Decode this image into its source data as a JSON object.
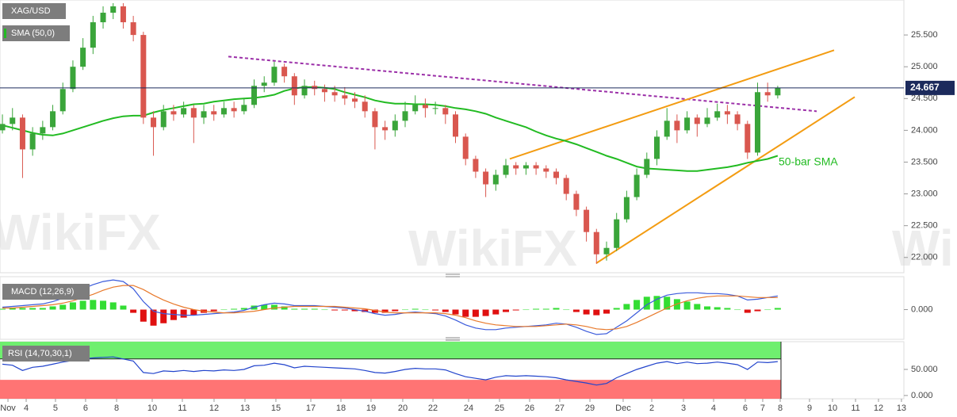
{
  "watermark": "WikiFX",
  "chart_data": [
    {
      "type": "candlestick",
      "title": "XAG/USD",
      "annotation": "50-bar SMA",
      "last_price": 24.667,
      "up_color": "#3aa53a",
      "down_color": "#d9574f",
      "x": [
        0,
        1,
        2,
        3,
        4,
        5,
        6,
        7,
        8,
        9,
        10,
        11,
        12,
        13,
        14,
        15,
        16,
        17,
        18,
        19,
        20,
        21,
        22,
        23,
        24,
        25,
        26,
        27,
        28,
        29,
        30,
        31,
        32,
        33,
        34,
        35,
        36,
        37,
        38,
        39,
        40,
        41,
        42,
        43,
        44,
        45,
        46,
        47,
        48,
        49,
        50,
        51,
        52,
        53,
        54,
        55,
        56,
        57,
        58,
        59,
        60,
        61,
        62,
        63,
        64,
        65,
        66,
        67,
        68,
        69,
        70,
        71,
        72,
        73,
        74,
        75,
        76,
        77
      ],
      "open": [
        24.0,
        24.1,
        24.2,
        23.7,
        23.95,
        24.05,
        24.3,
        24.65,
        25.0,
        25.3,
        25.7,
        25.85,
        25.95,
        25.7,
        25.5,
        24.2,
        24.05,
        24.3,
        24.25,
        24.35,
        24.2,
        24.3,
        24.25,
        24.35,
        24.3,
        24.4,
        24.7,
        24.75,
        25.0,
        24.85,
        24.55,
        24.7,
        24.65,
        24.6,
        24.55,
        24.5,
        24.45,
        24.3,
        24.05,
        24.0,
        24.15,
        24.3,
        24.4,
        24.35,
        24.35,
        24.25,
        23.9,
        23.55,
        23.35,
        23.15,
        23.3,
        23.45,
        23.4,
        23.45,
        23.4,
        23.35,
        23.25,
        23.0,
        22.75,
        22.4,
        22.05,
        22.15,
        22.6,
        22.95,
        23.3,
        23.55,
        23.9,
        24.15,
        24.0,
        24.2,
        24.1,
        24.2,
        24.3,
        24.25,
        24.1,
        23.65,
        24.6,
        24.55
      ],
      "high": [
        24.25,
        24.35,
        24.25,
        24.05,
        24.15,
        24.4,
        24.75,
        25.1,
        25.45,
        25.8,
        25.95,
        26.0,
        26.0,
        25.8,
        25.55,
        24.3,
        24.4,
        24.4,
        24.45,
        24.4,
        24.4,
        24.4,
        24.45,
        24.45,
        24.5,
        24.8,
        24.85,
        25.08,
        25.05,
        24.9,
        24.8,
        24.78,
        24.72,
        24.7,
        24.68,
        24.6,
        24.55,
        24.35,
        24.15,
        24.25,
        24.45,
        24.55,
        24.5,
        24.45,
        24.4,
        24.3,
        23.95,
        23.6,
        23.4,
        23.38,
        23.55,
        23.5,
        23.5,
        23.5,
        23.45,
        23.4,
        23.3,
        23.05,
        22.8,
        22.45,
        22.25,
        22.7,
        23.05,
        23.4,
        23.65,
        24.0,
        24.35,
        24.25,
        24.3,
        24.25,
        24.35,
        24.42,
        24.4,
        24.3,
        24.15,
        24.75,
        24.75,
        24.7
      ],
      "low": [
        23.95,
        24.0,
        23.25,
        23.6,
        23.85,
        24.0,
        24.25,
        24.6,
        24.95,
        25.2,
        25.6,
        25.75,
        25.6,
        25.4,
        24.1,
        23.6,
        24.0,
        24.15,
        24.2,
        23.8,
        24.1,
        24.15,
        24.2,
        24.2,
        24.25,
        24.35,
        24.6,
        24.7,
        24.75,
        24.4,
        24.5,
        24.55,
        24.45,
        24.45,
        24.4,
        24.35,
        24.2,
        23.7,
        23.85,
        23.9,
        24.05,
        24.25,
        24.2,
        24.25,
        24.1,
        23.8,
        23.45,
        23.25,
        22.95,
        23.05,
        23.25,
        23.3,
        23.3,
        23.3,
        23.25,
        23.15,
        22.9,
        22.65,
        22.25,
        21.9,
        21.95,
        22.1,
        22.55,
        22.9,
        23.25,
        23.45,
        23.85,
        23.8,
        23.95,
        23.9,
        24.05,
        24.15,
        24.1,
        24.0,
        23.55,
        23.6,
        24.45,
        24.5
      ],
      "close": [
        24.1,
        24.2,
        23.7,
        23.95,
        24.05,
        24.3,
        24.65,
        25.0,
        25.3,
        25.7,
        25.85,
        25.95,
        25.7,
        25.5,
        24.2,
        24.05,
        24.3,
        24.25,
        24.35,
        24.2,
        24.3,
        24.25,
        24.35,
        24.3,
        24.4,
        24.7,
        24.75,
        25.0,
        24.85,
        24.55,
        24.7,
        24.65,
        24.6,
        24.55,
        24.5,
        24.45,
        24.3,
        24.05,
        24.0,
        24.15,
        24.3,
        24.4,
        24.35,
        24.35,
        24.25,
        23.9,
        23.55,
        23.35,
        23.15,
        23.3,
        23.45,
        23.4,
        23.45,
        23.4,
        23.35,
        23.25,
        23.0,
        22.75,
        22.4,
        22.05,
        22.15,
        22.6,
        22.95,
        23.3,
        23.55,
        23.9,
        24.15,
        24.0,
        24.2,
        24.1,
        24.2,
        24.3,
        24.25,
        24.1,
        23.65,
        24.6,
        24.55,
        24.667
      ],
      "series": [
        {
          "name": "SMA (50,0)",
          "color": "#22bb22",
          "values": [
            24.08,
            24.04,
            24.0,
            23.96,
            23.93,
            23.92,
            23.95,
            24.0,
            24.05,
            24.1,
            24.15,
            24.19,
            24.22,
            24.23,
            24.23,
            24.28,
            24.32,
            24.35,
            24.38,
            24.41,
            24.42,
            24.45,
            24.47,
            24.49,
            24.5,
            24.51,
            24.53,
            24.56,
            24.62,
            24.66,
            24.68,
            24.68,
            24.67,
            24.65,
            24.6,
            24.56,
            24.52,
            24.47,
            24.44,
            24.42,
            24.42,
            24.41,
            24.41,
            24.4,
            24.38,
            24.35,
            24.33,
            24.3,
            24.26,
            24.2,
            24.15,
            24.1,
            24.05,
            23.98,
            23.92,
            23.87,
            23.83,
            23.78,
            23.72,
            23.66,
            23.6,
            23.55,
            23.49,
            23.43,
            23.4,
            23.39,
            23.38,
            23.37,
            23.36,
            23.36,
            23.38,
            23.4,
            23.42,
            23.45,
            23.49,
            23.52,
            23.55,
            23.6
          ]
        }
      ],
      "trend_lines": [
        {
          "x": [
            22.44,
            80.87
          ],
          "y": [
            25.16,
            24.3
          ],
          "color": "#9b2fa8",
          "dashed": true
        },
        {
          "x": [
            50.39,
            82.6
          ],
          "y": [
            23.55,
            25.26
          ],
          "color": "#f39c12",
          "dashed": false
        },
        {
          "x": [
            58.98,
            84.65
          ],
          "y": [
            21.91,
            24.525
          ],
          "color": "#f39c12",
          "dashed": false
        }
      ],
      "xlim": [
        -0.24,
        89.53
      ],
      "ylim": [
        21.76,
        26.05
      ],
      "yticks": [
        {
          "value": 22,
          "label": "22.000"
        },
        {
          "value": 22.5,
          "label": "22.500"
        },
        {
          "value": 23,
          "label": "23.000"
        },
        {
          "value": 23.5,
          "label": "23.500"
        },
        {
          "value": 24,
          "label": "24.000"
        },
        {
          "value": 24.5,
          "label": "24.500"
        },
        {
          "value": 25,
          "label": "25.000"
        },
        {
          "value": 25.5,
          "label": "25.500"
        }
      ]
    },
    {
      "type": "macd",
      "title": "MACD (12,26,9)",
      "ylim": [
        -0.37,
        0.41
      ],
      "yticks": [
        {
          "value": 0,
          "label": "0.000"
        }
      ],
      "series": [
        {
          "color": "#3b5bdb",
          "values": [
            0.03,
            0.04,
            0.05,
            0.06,
            0.07,
            0.1,
            0.14,
            0.2,
            0.26,
            0.31,
            0.35,
            0.37,
            0.35,
            0.26,
            0.1,
            -0.02,
            -0.05,
            -0.06,
            -0.07,
            -0.07,
            -0.06,
            -0.05,
            -0.04,
            -0.03,
            -0.01,
            0.03,
            0.06,
            0.08,
            0.07,
            0.05,
            0.05,
            0.05,
            0.04,
            0.03,
            0.02,
            0.0,
            -0.02,
            -0.05,
            -0.07,
            -0.06,
            -0.04,
            -0.03,
            -0.04,
            -0.05,
            -0.08,
            -0.13,
            -0.19,
            -0.23,
            -0.25,
            -0.25,
            -0.23,
            -0.22,
            -0.21,
            -0.2,
            -0.19,
            -0.17,
            -0.18,
            -0.22,
            -0.27,
            -0.31,
            -0.3,
            -0.22,
            -0.14,
            -0.04,
            0.06,
            0.13,
            0.18,
            0.2,
            0.21,
            0.21,
            0.2,
            0.2,
            0.19,
            0.17,
            0.12,
            0.13,
            0.15,
            0.17
          ]
        },
        {
          "color": "#e8792b",
          "values": [
            0.02,
            0.02,
            0.03,
            0.04,
            0.05,
            0.06,
            0.08,
            0.11,
            0.15,
            0.19,
            0.24,
            0.28,
            0.3,
            0.3,
            0.25,
            0.18,
            0.12,
            0.07,
            0.03,
            0.0,
            -0.02,
            -0.03,
            -0.04,
            -0.04,
            -0.03,
            -0.02,
            0.0,
            0.02,
            0.03,
            0.04,
            0.04,
            0.04,
            0.04,
            0.04,
            0.03,
            0.02,
            0.01,
            -0.01,
            -0.03,
            -0.04,
            -0.04,
            -0.04,
            -0.04,
            -0.04,
            -0.05,
            -0.07,
            -0.1,
            -0.14,
            -0.17,
            -0.19,
            -0.2,
            -0.21,
            -0.21,
            -0.21,
            -0.2,
            -0.19,
            -0.18,
            -0.19,
            -0.21,
            -0.24,
            -0.25,
            -0.24,
            -0.21,
            -0.16,
            -0.1,
            -0.04,
            0.02,
            0.07,
            0.11,
            0.14,
            0.16,
            0.17,
            0.17,
            0.17,
            0.16,
            0.15,
            0.15,
            0.15
          ]
        }
      ],
      "histogram": {
        "up_color": "#33dd33",
        "down_color": "#e01010",
        "values": [
          0.01,
          0.02,
          0.02,
          0.02,
          0.02,
          0.04,
          0.06,
          0.09,
          0.11,
          0.12,
          0.11,
          0.09,
          0.05,
          -0.04,
          -0.15,
          -0.2,
          -0.17,
          -0.13,
          -0.1,
          -0.07,
          -0.04,
          -0.02,
          0,
          0.01,
          0.02,
          0.05,
          0.06,
          0.06,
          0.04,
          0.01,
          0.01,
          0.01,
          0,
          -0.01,
          -0.01,
          -0.02,
          -0.03,
          -0.04,
          -0.04,
          -0.02,
          0,
          0.01,
          0,
          -0.01,
          -0.03,
          -0.06,
          -0.09,
          -0.09,
          -0.08,
          -0.06,
          -0.03,
          -0.01,
          0,
          0.01,
          0.01,
          0.02,
          0,
          -0.03,
          -0.06,
          -0.07,
          -0.05,
          0.02,
          0.07,
          0.12,
          0.16,
          0.17,
          0.16,
          0.13,
          0.1,
          0.07,
          0.04,
          0.03,
          0.02,
          0,
          -0.04,
          -0.02,
          0,
          0.02
        ]
      }
    },
    {
      "type": "rsi",
      "title": "RSI (14,70,30,1)",
      "color": "#2244cc",
      "overbought": 70,
      "oversold": 30,
      "overbought_color": "#6fef6f",
      "oversold_color": "#ff7474",
      "ylim": [
        -6.25,
        103.1
      ],
      "yticks": [
        {
          "value": 50,
          "label": "50.000"
        },
        {
          "value": 0,
          "label": "0.000"
        }
      ],
      "values": [
        60,
        58,
        48,
        54,
        56,
        60,
        64,
        67,
        70,
        72,
        73,
        74,
        70,
        66,
        44,
        42,
        47,
        46,
        48,
        46,
        48,
        47,
        49,
        48,
        50,
        57,
        58,
        62,
        59,
        53,
        56,
        55,
        54,
        53,
        52,
        51,
        48,
        44,
        43,
        46,
        50,
        52,
        51,
        51,
        49,
        42,
        36,
        33,
        30,
        35,
        38,
        37,
        38,
        37,
        36,
        34,
        30,
        27,
        24,
        20,
        23,
        34,
        42,
        50,
        56,
        62,
        65,
        61,
        64,
        61,
        62,
        64,
        62,
        59,
        50,
        64,
        63,
        65
      ],
      "xticks": [
        {
          "value": 0.55,
          "label": "Nov"
        },
        {
          "value": 2.36,
          "label": "4"
        },
        {
          "value": 5.27,
          "label": "5"
        },
        {
          "value": 8.26,
          "label": "6"
        },
        {
          "value": 11.34,
          "label": "8"
        },
        {
          "value": 14.88,
          "label": "10"
        },
        {
          "value": 17.87,
          "label": "11"
        },
        {
          "value": 21.02,
          "label": "12"
        },
        {
          "value": 24.09,
          "label": "13"
        },
        {
          "value": 27.16,
          "label": "15"
        },
        {
          "value": 30.63,
          "label": "17"
        },
        {
          "value": 33.62,
          "label": "18"
        },
        {
          "value": 36.61,
          "label": "19"
        },
        {
          "value": 39.76,
          "label": "20"
        },
        {
          "value": 42.76,
          "label": "22"
        },
        {
          "value": 46.3,
          "label": "24"
        },
        {
          "value": 49.37,
          "label": "25"
        },
        {
          "value": 52.36,
          "label": "26"
        },
        {
          "value": 55.35,
          "label": "27"
        },
        {
          "value": 58.35,
          "label": "29"
        },
        {
          "value": 61.65,
          "label": "Dec"
        },
        {
          "value": 64.49,
          "label": "2"
        },
        {
          "value": 67.64,
          "label": "3"
        },
        {
          "value": 70.63,
          "label": "4"
        },
        {
          "value": 73.78,
          "label": "6"
        },
        {
          "value": 75.51,
          "label": "7"
        },
        {
          "value": 77.25,
          "label": "8"
        },
        {
          "value": 80.16,
          "label": "9"
        },
        {
          "value": 82.44,
          "label": "10"
        },
        {
          "value": 84.73,
          "label": "11"
        },
        {
          "value": 87.01,
          "label": "12"
        },
        {
          "value": 89.29,
          "label": "13"
        }
      ]
    }
  ]
}
